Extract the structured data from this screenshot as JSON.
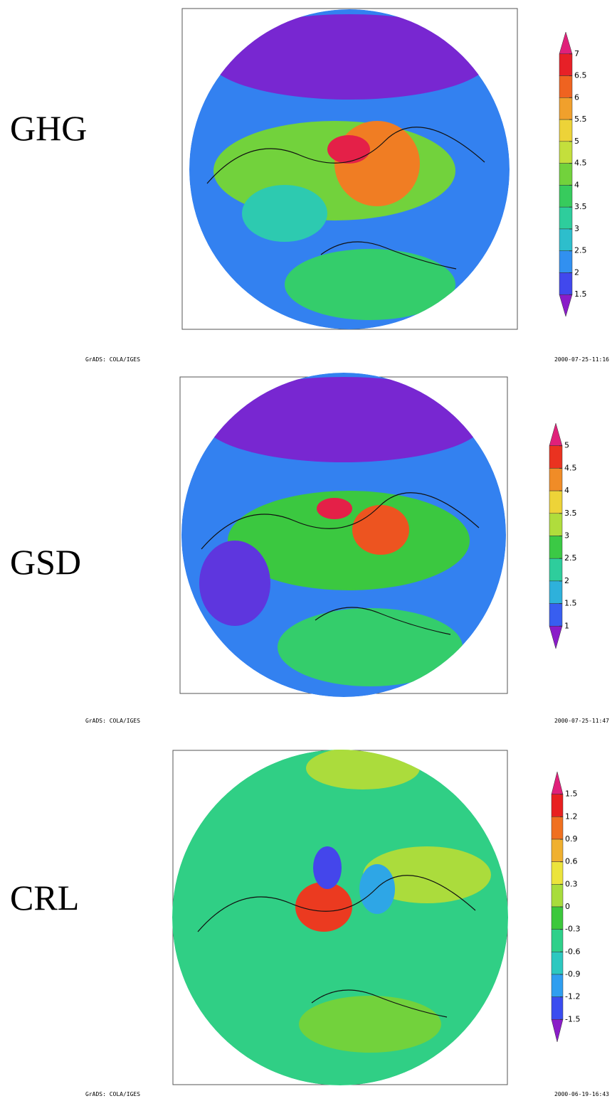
{
  "panels": [
    {
      "label": "GHG",
      "colorbar_ticks": [
        7,
        6.5,
        6,
        5.5,
        5,
        4.5,
        4,
        3.5,
        3,
        2.5,
        2,
        1.5
      ],
      "footer_left": "GrADS: COLA/IGES",
      "footer_right": "2000-07-25-11:16"
    },
    {
      "label": "GSD",
      "colorbar_ticks": [
        5,
        4.5,
        4,
        3.5,
        3,
        2.5,
        2,
        1.5,
        1
      ],
      "footer_left": "GrADS: COLA/IGES",
      "footer_right": "2000-07-25-11:47"
    },
    {
      "label": "CRL",
      "colorbar_ticks": [
        1.5,
        1.2,
        0.9,
        0.6,
        0.3,
        0,
        -0.3,
        -0.6,
        -0.9,
        -1.2,
        -1.5
      ],
      "footer_left": "GrADS: COLA/IGES",
      "footer_right": "2000-06-19-16:43"
    }
  ]
}
